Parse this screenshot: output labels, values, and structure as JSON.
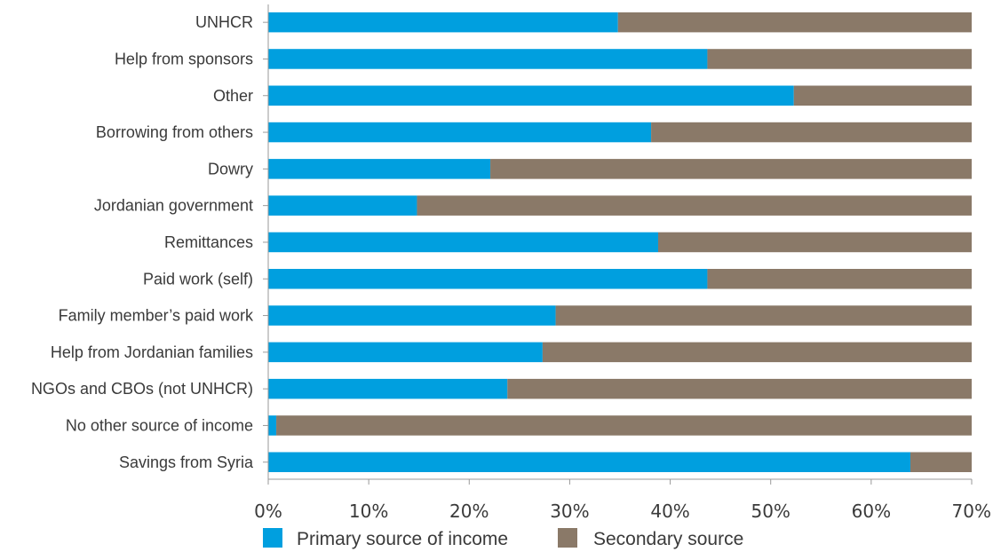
{
  "chart_data": {
    "type": "bar",
    "orientation": "horizontal",
    "stacked": true,
    "categories": [
      "UNHCR",
      "Help from sponsors",
      "Other",
      "Borrowing from others",
      "Dowry",
      "Jordanian government",
      "Remittances",
      "Paid work (self)",
      "Family member’s paid work",
      "Help from Jordanian families",
      "NGOs and CBOs (not UNHCR)",
      "No other source of income",
      "Savings from Syria"
    ],
    "series": [
      {
        "name": "Primary source of income",
        "color": "#009fdf",
        "values": [
          34.8,
          43.7,
          52.3,
          38.1,
          22.1,
          14.8,
          38.8,
          43.7,
          28.6,
          27.3,
          23.8,
          0.8,
          63.9
        ]
      },
      {
        "name": "Secondary source",
        "color": "#8a7968",
        "values": [
          35.2,
          26.3,
          17.7,
          31.9,
          47.9,
          55.2,
          31.2,
          26.3,
          41.4,
          42.7,
          46.2,
          69.2,
          6.1
        ]
      }
    ],
    "xlim": [
      0,
      70
    ],
    "xticks": [
      0,
      10,
      20,
      30,
      40,
      50,
      60,
      70
    ],
    "xtick_labels": [
      "0%",
      "10%",
      "20%",
      "30%",
      "40%",
      "50%",
      "60%",
      "70%"
    ],
    "grid": false,
    "legend_position": "bottom"
  }
}
